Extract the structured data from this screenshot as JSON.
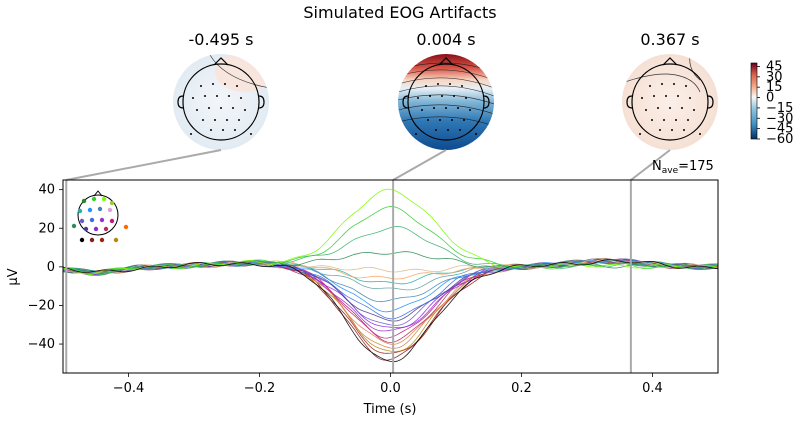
{
  "chart_data": {
    "type": "line",
    "title": "Simulated EOG Artifacts",
    "xlabel": "Time (s)",
    "ylabel": "µV",
    "xlim": [
      -0.5,
      0.5
    ],
    "ylim": [
      -55,
      45
    ],
    "x_ticks": [
      "−0.4",
      "−0.2",
      "0.0",
      "0.2",
      "0.4"
    ],
    "x_tick_values": [
      -0.4,
      -0.2,
      0.0,
      0.2,
      0.4
    ],
    "y_ticks": [
      "−40",
      "−20",
      "0",
      "20",
      "40"
    ],
    "y_tick_values": [
      -40,
      -20,
      0,
      20,
      40
    ],
    "nave_label": "N",
    "nave_sub": "ave",
    "nave_value": "=175",
    "topomap_times": [
      {
        "label": "-0.495 s",
        "time": -0.495
      },
      {
        "label": "0.004 s",
        "time": 0.004
      },
      {
        "label": "0.367 s",
        "time": 0.367
      }
    ],
    "colorbar": {
      "ticks": [
        "45",
        "30",
        "15",
        "0",
        "−15",
        "−30",
        "−45",
        "−60"
      ],
      "tick_values": [
        45,
        30,
        15,
        0,
        -15,
        -30,
        -45,
        -60
      ],
      "range": [
        -60,
        50
      ],
      "colormap": "RdBu_r"
    },
    "channels": [
      {
        "color": "#8b1a1a",
        "peak": -48
      },
      {
        "color": "#a0220f",
        "peak": -46
      },
      {
        "color": "#b8860b",
        "peak": -44
      },
      {
        "color": "#cd853f",
        "peak": -42
      },
      {
        "color": "#e08050",
        "peak": -40
      },
      {
        "color": "#b03060",
        "peak": -38
      },
      {
        "color": "#c71585",
        "peak": -36
      },
      {
        "color": "#9932cc",
        "peak": -34
      },
      {
        "color": "#8a2be2",
        "peak": -32
      },
      {
        "color": "#6a5acd",
        "peak": -30
      },
      {
        "color": "#483d8b",
        "peak": -28
      },
      {
        "color": "#4169e1",
        "peak": -26
      },
      {
        "color": "#1e90ff",
        "peak": -22
      },
      {
        "color": "#4682b4",
        "peak": -18
      },
      {
        "color": "#5f9ea0",
        "peak": -12
      },
      {
        "color": "#20b2aa",
        "peak": -8
      },
      {
        "color": "#f4a460",
        "peak": -6
      },
      {
        "color": "#deb887",
        "peak": -2
      },
      {
        "color": "#2e8b57",
        "peak": 8
      },
      {
        "color": "#3cb371",
        "peak": 20
      },
      {
        "color": "#32cd32",
        "peak": 30
      },
      {
        "color": "#7cfc00",
        "peak": 40
      },
      {
        "color": "#000000",
        "peak": -49
      }
    ]
  }
}
